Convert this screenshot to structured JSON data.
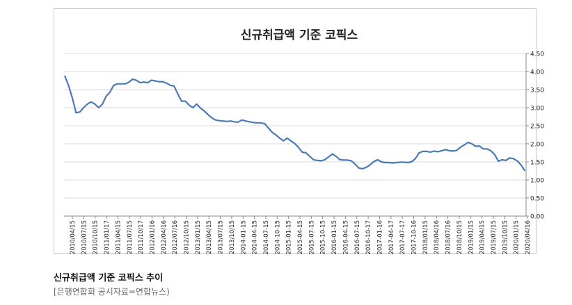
{
  "caption": {
    "title": "신규취급액 기준 코픽스 추이",
    "source": "[은행연합회 공시자료=연합뉴스)"
  },
  "colors": {
    "line": "#4a7ab5",
    "grid": "#d9d9d9",
    "axis": "#888888",
    "text": "#222222"
  },
  "chart_data": {
    "type": "line",
    "title": "신규취급액 기준 코픽스",
    "xlabel": "",
    "ylabel": "",
    "ylim": [
      0,
      4.5
    ],
    "yticks": [
      "0.00",
      "0.50",
      "1.00",
      "1.50",
      "2.00",
      "2.50",
      "3.00",
      "3.50",
      "4.00",
      "4.50"
    ],
    "y_axis_side": "right",
    "grid": true,
    "legend": "none",
    "x_tick_labels": [
      "2010/04/15",
      "2010/07/15",
      "2010/10/15",
      "2011/01/17",
      "2011/04/15",
      "2011/07/15",
      "2011/10/17",
      "2012/01/16",
      "2012/04/16",
      "2012/07/16",
      "2012/10/15",
      "2013/01/15",
      "2013/04/15",
      "2013/07/15",
      "2013/10/15",
      "2014-01-15",
      "2014-04-15",
      "2014-07-15",
      "2014-10-15",
      "2015-01-15",
      "2015-04-15",
      "2015-07-15",
      "2015-10-15",
      "2016-01-15",
      "2016-04-15",
      "2016-07-15",
      "2016-10-17",
      "2017-01-16",
      "2017-04-17",
      "2017-07-17",
      "2017-10-16",
      "2018/01/15",
      "2018/04/16",
      "2018/07/16",
      "2018/10/15",
      "2019/01/15",
      "2019/04/15",
      "2019/07/15",
      "2019/10/15",
      "2020/01/15",
      "2020/04/16"
    ],
    "series": [
      {
        "values": [
          3.88,
          3.62,
          3.28,
          2.86,
          2.88,
          3.0,
          3.1,
          3.16,
          3.1,
          3.0,
          3.1,
          3.32,
          3.43,
          3.62,
          3.66,
          3.66,
          3.66,
          3.7,
          3.79,
          3.76,
          3.69,
          3.71,
          3.69,
          3.76,
          3.74,
          3.72,
          3.72,
          3.68,
          3.62,
          3.6,
          3.38,
          3.18,
          3.18,
          3.07,
          3.0,
          3.1,
          2.99,
          2.91,
          2.81,
          2.72,
          2.66,
          2.64,
          2.63,
          2.62,
          2.63,
          2.61,
          2.6,
          2.66,
          2.63,
          2.61,
          2.59,
          2.58,
          2.58,
          2.56,
          2.44,
          2.32,
          2.25,
          2.16,
          2.08,
          2.16,
          2.08,
          2.01,
          1.9,
          1.77,
          1.75,
          1.65,
          1.56,
          1.54,
          1.53,
          1.56,
          1.64,
          1.72,
          1.65,
          1.56,
          1.55,
          1.55,
          1.53,
          1.44,
          1.33,
          1.31,
          1.35,
          1.42,
          1.51,
          1.56,
          1.5,
          1.48,
          1.48,
          1.47,
          1.48,
          1.49,
          1.49,
          1.48,
          1.5,
          1.59,
          1.75,
          1.79,
          1.79,
          1.77,
          1.8,
          1.78,
          1.81,
          1.84,
          1.81,
          1.8,
          1.82,
          1.91,
          1.97,
          2.04,
          2.0,
          1.93,
          1.94,
          1.86,
          1.86,
          1.81,
          1.71,
          1.52,
          1.56,
          1.54,
          1.61,
          1.59,
          1.53,
          1.42,
          1.26
        ]
      }
    ]
  }
}
